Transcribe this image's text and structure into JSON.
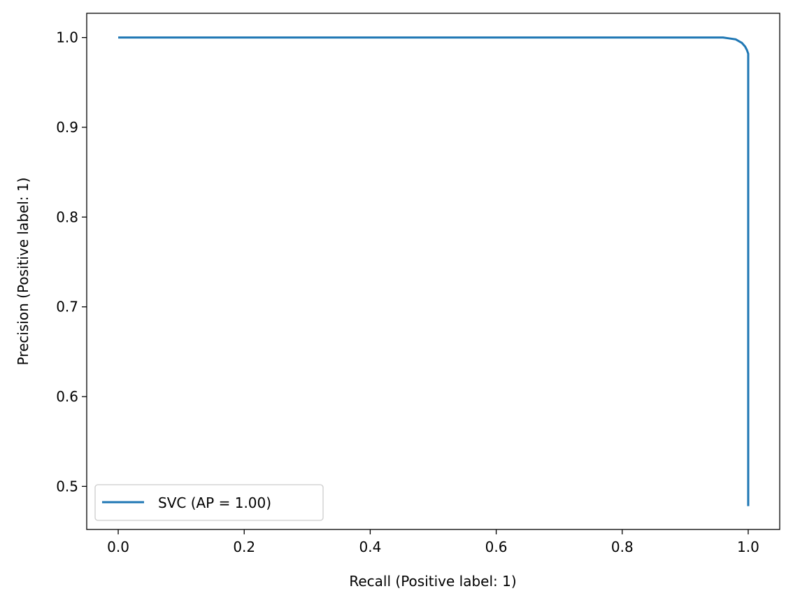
{
  "chart_data": {
    "type": "line",
    "title": "",
    "xlabel": "Recall (Positive label: 1)",
    "ylabel": "Precision (Positive label: 1)",
    "xlim": [
      -0.05,
      1.05
    ],
    "ylim": [
      0.452,
      1.027
    ],
    "xticks": [
      0.0,
      0.2,
      0.4,
      0.6,
      0.8,
      1.0
    ],
    "xtick_labels": [
      "0.0",
      "0.2",
      "0.4",
      "0.6",
      "0.8",
      "1.0"
    ],
    "yticks": [
      0.5,
      0.6,
      0.7,
      0.8,
      0.9,
      1.0
    ],
    "ytick_labels": [
      "0.5",
      "0.6",
      "0.7",
      "0.8",
      "0.9",
      "1.0"
    ],
    "grid": false,
    "legend": {
      "position": "lower-left"
    },
    "series": [
      {
        "name": "SVC (AP = 1.00)",
        "color": "#1f77b4",
        "x": [
          0.0,
          0.2,
          0.4,
          0.6,
          0.8,
          0.96,
          0.97,
          0.98,
          0.985,
          0.99,
          0.995,
          0.998,
          1.0,
          1.0,
          1.0
        ],
        "y": [
          1.0,
          1.0,
          1.0,
          1.0,
          1.0,
          1.0,
          0.999,
          0.998,
          0.996,
          0.994,
          0.99,
          0.986,
          0.982,
          0.7,
          0.478
        ]
      }
    ]
  }
}
